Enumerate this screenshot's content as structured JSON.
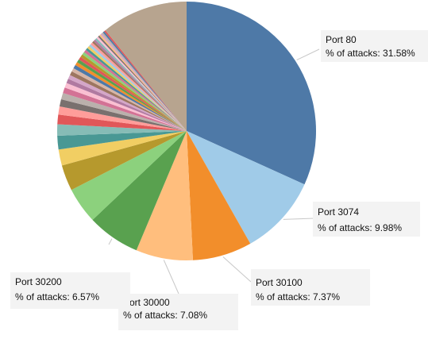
{
  "chart_data": {
    "type": "pie",
    "title": "",
    "slices": [
      {
        "label": "Port 80",
        "value": 31.58,
        "color": "#4e79a7"
      },
      {
        "label": "Port 3074",
        "value": 9.98,
        "color": "#a0cbe8"
      },
      {
        "label": "Port 30100",
        "value": 7.37,
        "color": "#f28e2b"
      },
      {
        "label": "Port 30000",
        "value": 7.08,
        "color": "#ffbe7d"
      },
      {
        "label": "Port 30200",
        "value": 6.57,
        "color": "#59a14f"
      },
      {
        "label": "",
        "value": 4.5,
        "color": "#8cd17d"
      },
      {
        "label": "",
        "value": 3.2,
        "color": "#b6992d"
      },
      {
        "label": "",
        "value": 2.0,
        "color": "#f1ce63"
      },
      {
        "label": "",
        "value": 1.7,
        "color": "#499894"
      },
      {
        "label": "",
        "value": 1.4,
        "color": "#86bcb6"
      },
      {
        "label": "",
        "value": 1.2,
        "color": "#e15759"
      },
      {
        "label": "",
        "value": 1.0,
        "color": "#ff9d9a"
      },
      {
        "label": "",
        "value": 0.9,
        "color": "#79706e"
      },
      {
        "label": "",
        "value": 0.8,
        "color": "#bab0ac"
      },
      {
        "label": "",
        "value": 0.7,
        "color": "#d37295"
      },
      {
        "label": "",
        "value": 0.6,
        "color": "#fabfd2"
      },
      {
        "label": "",
        "value": 0.55,
        "color": "#b07aa1"
      },
      {
        "label": "",
        "value": 0.5,
        "color": "#d4a6c8"
      },
      {
        "label": "",
        "value": 0.5,
        "color": "#9d7660"
      },
      {
        "label": "",
        "value": 0.45,
        "color": "#d7b5a6"
      },
      {
        "label": "",
        "value": 0.45,
        "color": "#4e79a7"
      },
      {
        "label": "",
        "value": 0.4,
        "color": "#f28e2b"
      },
      {
        "label": "",
        "value": 0.4,
        "color": "#59a14f"
      },
      {
        "label": "",
        "value": 0.4,
        "color": "#e15759"
      },
      {
        "label": "",
        "value": 0.35,
        "color": "#b6992d"
      },
      {
        "label": "",
        "value": 0.35,
        "color": "#8cd17d"
      },
      {
        "label": "",
        "value": 0.35,
        "color": "#d37295"
      },
      {
        "label": "",
        "value": 0.3,
        "color": "#499894"
      },
      {
        "label": "",
        "value": 0.3,
        "color": "#f1ce63"
      },
      {
        "label": "",
        "value": 0.3,
        "color": "#a0cbe8"
      },
      {
        "label": "",
        "value": 0.3,
        "color": "#ff9d9a"
      },
      {
        "label": "",
        "value": 0.25,
        "color": "#9d7660"
      },
      {
        "label": "",
        "value": 0.25,
        "color": "#b07aa1"
      },
      {
        "label": "",
        "value": 0.25,
        "color": "#86bcb6"
      },
      {
        "label": "",
        "value": 0.25,
        "color": "#fabfd2"
      },
      {
        "label": "",
        "value": 0.2,
        "color": "#79706e"
      },
      {
        "label": "",
        "value": 0.2,
        "color": "#ffbe7d"
      },
      {
        "label": "",
        "value": 0.2,
        "color": "#d4a6c8"
      },
      {
        "label": "",
        "value": 0.2,
        "color": "#bab0ac"
      },
      {
        "label": "",
        "value": 0.2,
        "color": "#4e79a7"
      },
      {
        "label": "",
        "value": 0.2,
        "color": "#e15759"
      },
      {
        "label": "",
        "value": 10.73,
        "color": "#b7a48f"
      }
    ]
  },
  "callouts": [
    {
      "port": "Port 80",
      "pct_text": "% of attacks: 31.58%"
    },
    {
      "port": "Port 3074",
      "pct_text": "% of attacks: 9.98%"
    },
    {
      "port": "Port 30100",
      "pct_text": "% of attacks: 7.37%"
    },
    {
      "port": "Port 30000",
      "pct_text": "% of attacks: 7.08%"
    },
    {
      "port": "Port 30200",
      "pct_text": "% of attacks: 6.57%"
    }
  ]
}
